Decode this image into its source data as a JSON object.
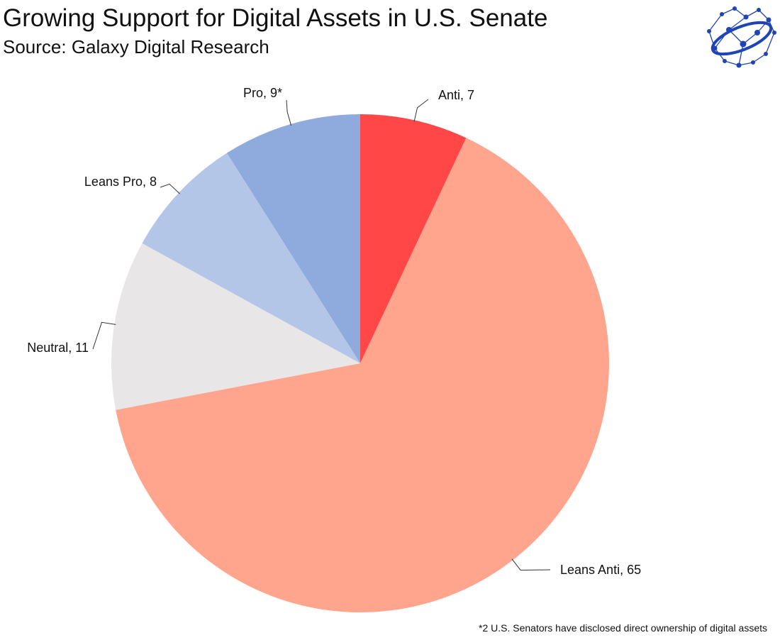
{
  "header": {
    "title": "Growing Support for Digital Assets in U.S. Senate",
    "subtitle": "Source: Galaxy Digital Research"
  },
  "logo": {
    "icon": "galaxy-logo-icon",
    "color": "#1f45b5"
  },
  "chart_data": {
    "type": "pie",
    "title": "Growing Support for Digital Assets in U.S. Senate",
    "subtitle": "Source: Galaxy Digital Research",
    "start": "12 o'clock, clockwise",
    "slices": [
      {
        "key": "anti",
        "label": "Anti, 7",
        "category": "Anti",
        "value": 7,
        "color": "#ff4747"
      },
      {
        "key": "leans-anti",
        "label": "Leans Anti, 65",
        "category": "Leans Anti",
        "value": 65,
        "color": "#ffa58d"
      },
      {
        "key": "neutral",
        "label": "Neutral, 11",
        "category": "Neutral",
        "value": 11,
        "color": "#e8e6e7"
      },
      {
        "key": "leans-pro",
        "label": "Leans Pro, 8",
        "category": "Leans Pro",
        "value": 8,
        "color": "#b4c6e7"
      },
      {
        "key": "pro",
        "label": "Pro, 9*",
        "category": "Pro",
        "value": 9,
        "color": "#8faadc"
      }
    ]
  },
  "footnote": "*2 U.S. Senators have disclosed direct ownership of digital assets"
}
